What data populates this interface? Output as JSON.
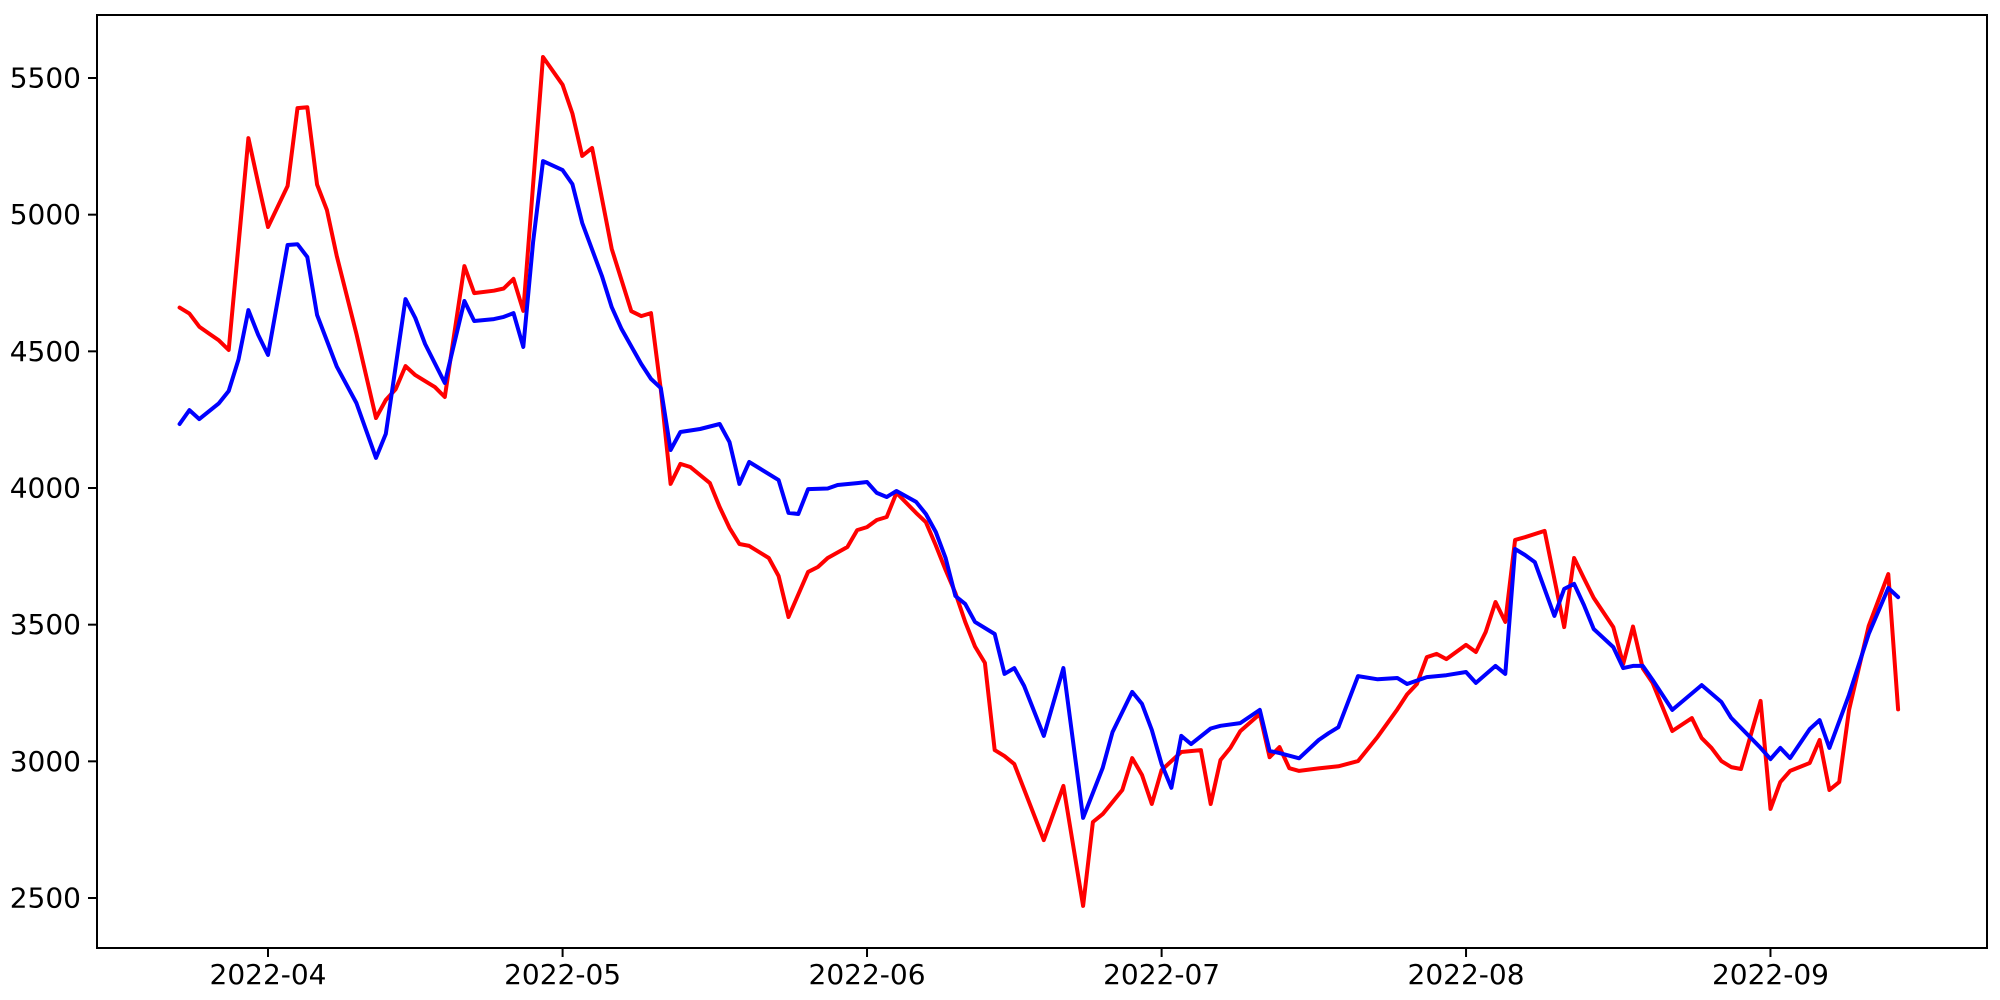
{
  "figure": {
    "background_color": "#ffffff",
    "spine_color": "#000000",
    "tick_label_color": "#000000"
  },
  "chart_data": {
    "type": "line",
    "title": "",
    "xlabel": "",
    "ylabel": "",
    "grid": false,
    "legend": "none",
    "x_axis": {
      "tick_labels": [
        "2022-04",
        "2022-05",
        "2022-06",
        "2022-07",
        "2022-08",
        "2022-09"
      ],
      "tick_dates": [
        "2022-04-01",
        "2022-05-01",
        "2022-06-01",
        "2022-07-01",
        "2022-08-01",
        "2022-09-01"
      ],
      "data_range": [
        "2022-03-23",
        "2022-09-14"
      ]
    },
    "y_axis": {
      "ticks": [
        2500,
        3000,
        3500,
        4000,
        4500,
        5000,
        5500
      ],
      "ylim": [
        2316,
        5732
      ]
    },
    "series": [
      {
        "name": "red-series",
        "color": "#ff0000",
        "points": [
          [
            "2022-03-23",
            4660
          ],
          [
            "2022-03-24",
            4638
          ],
          [
            "2022-03-25",
            4590
          ],
          [
            "2022-03-26",
            4565
          ],
          [
            "2022-03-27",
            4540
          ],
          [
            "2022-03-28",
            4505
          ],
          [
            "2022-03-29",
            4890
          ],
          [
            "2022-03-30",
            5280
          ],
          [
            "2022-03-31",
            5115
          ],
          [
            "2022-04-01",
            4955
          ],
          [
            "2022-04-03",
            5105
          ],
          [
            "2022-04-04",
            5390
          ],
          [
            "2022-04-05",
            5393
          ],
          [
            "2022-04-06",
            5110
          ],
          [
            "2022-04-07",
            5017
          ],
          [
            "2022-04-08",
            4850
          ],
          [
            "2022-04-10",
            4564
          ],
          [
            "2022-04-12",
            4256
          ],
          [
            "2022-04-13",
            4322
          ],
          [
            "2022-04-14",
            4362
          ],
          [
            "2022-04-15",
            4446
          ],
          [
            "2022-04-16",
            4413
          ],
          [
            "2022-04-18",
            4369
          ],
          [
            "2022-04-19",
            4333
          ],
          [
            "2022-04-21",
            4812
          ],
          [
            "2022-04-22",
            4713
          ],
          [
            "2022-04-24",
            4722
          ],
          [
            "2022-04-25",
            4730
          ],
          [
            "2022-04-26",
            4765
          ],
          [
            "2022-04-27",
            4648
          ],
          [
            "2022-04-28",
            5110
          ],
          [
            "2022-04-29",
            5577
          ],
          [
            "2022-05-01",
            5475
          ],
          [
            "2022-05-02",
            5370
          ],
          [
            "2022-05-03",
            5215
          ],
          [
            "2022-05-04",
            5244
          ],
          [
            "2022-05-05",
            5060
          ],
          [
            "2022-05-06",
            4875
          ],
          [
            "2022-05-08",
            4647
          ],
          [
            "2022-05-09",
            4629
          ],
          [
            "2022-05-10",
            4640
          ],
          [
            "2022-05-11",
            4360
          ],
          [
            "2022-05-12",
            4015
          ],
          [
            "2022-05-13",
            4088
          ],
          [
            "2022-05-14",
            4077
          ],
          [
            "2022-05-16",
            4018
          ],
          [
            "2022-05-17",
            3930
          ],
          [
            "2022-05-18",
            3854
          ],
          [
            "2022-05-19",
            3795
          ],
          [
            "2022-05-20",
            3788
          ],
          [
            "2022-05-22",
            3744
          ],
          [
            "2022-05-23",
            3678
          ],
          [
            "2022-05-24",
            3528
          ],
          [
            "2022-05-26",
            3693
          ],
          [
            "2022-05-27",
            3711
          ],
          [
            "2022-05-28",
            3744
          ],
          [
            "2022-05-30",
            3784
          ],
          [
            "2022-05-31",
            3846
          ],
          [
            "2022-06-01",
            3857
          ],
          [
            "2022-06-02",
            3883
          ],
          [
            "2022-06-03",
            3894
          ],
          [
            "2022-06-04",
            3982
          ],
          [
            "2022-06-06",
            3909
          ],
          [
            "2022-06-07",
            3875
          ],
          [
            "2022-06-08",
            3790
          ],
          [
            "2022-06-09",
            3700
          ],
          [
            "2022-06-10",
            3616
          ],
          [
            "2022-06-11",
            3510
          ],
          [
            "2022-06-12",
            3420
          ],
          [
            "2022-06-13",
            3360
          ],
          [
            "2022-06-14",
            3041
          ],
          [
            "2022-06-15",
            3019
          ],
          [
            "2022-06-16",
            2990
          ],
          [
            "2022-06-19",
            2712
          ],
          [
            "2022-06-21",
            2910
          ],
          [
            "2022-06-23",
            2471
          ],
          [
            "2022-06-24",
            2778
          ],
          [
            "2022-06-25",
            2807
          ],
          [
            "2022-06-27",
            2895
          ],
          [
            "2022-06-28",
            3012
          ],
          [
            "2022-06-29",
            2950
          ],
          [
            "2022-06-30",
            2844
          ],
          [
            "2022-07-01",
            2968
          ],
          [
            "2022-07-03",
            3034
          ],
          [
            "2022-07-05",
            3041
          ],
          [
            "2022-07-06",
            2844
          ],
          [
            "2022-07-07",
            3005
          ],
          [
            "2022-07-08",
            3049
          ],
          [
            "2022-07-09",
            3110
          ],
          [
            "2022-07-11",
            3173
          ],
          [
            "2022-07-12",
            3015
          ],
          [
            "2022-07-13",
            3052
          ],
          [
            "2022-07-14",
            2975
          ],
          [
            "2022-07-15",
            2965
          ],
          [
            "2022-07-17",
            2974
          ],
          [
            "2022-07-19",
            2982
          ],
          [
            "2022-07-21",
            3001
          ],
          [
            "2022-07-23",
            3090
          ],
          [
            "2022-07-25",
            3190
          ],
          [
            "2022-07-26",
            3245
          ],
          [
            "2022-07-27",
            3283
          ],
          [
            "2022-07-28",
            3381
          ],
          [
            "2022-07-29",
            3393
          ],
          [
            "2022-07-30",
            3374
          ],
          [
            "2022-08-01",
            3426
          ],
          [
            "2022-08-02",
            3400
          ],
          [
            "2022-08-03",
            3473
          ],
          [
            "2022-08-04",
            3583
          ],
          [
            "2022-08-05",
            3510
          ],
          [
            "2022-08-06",
            3810
          ],
          [
            "2022-08-07",
            3820
          ],
          [
            "2022-08-09",
            3843
          ],
          [
            "2022-08-11",
            3491
          ],
          [
            "2022-08-12",
            3744
          ],
          [
            "2022-08-13",
            3670
          ],
          [
            "2022-08-14",
            3598
          ],
          [
            "2022-08-16",
            3491
          ],
          [
            "2022-08-17",
            3356
          ],
          [
            "2022-08-18",
            3493
          ],
          [
            "2022-08-19",
            3340
          ],
          [
            "2022-08-20",
            3287
          ],
          [
            "2022-08-22",
            3111
          ],
          [
            "2022-08-24",
            3158
          ],
          [
            "2022-08-25",
            3085
          ],
          [
            "2022-08-26",
            3049
          ],
          [
            "2022-08-27",
            3001
          ],
          [
            "2022-08-28",
            2979
          ],
          [
            "2022-08-29",
            2972
          ],
          [
            "2022-08-31",
            3221
          ],
          [
            "2022-09-01",
            2826
          ],
          [
            "2022-09-02",
            2924
          ],
          [
            "2022-09-03",
            2965
          ],
          [
            "2022-09-05",
            2994
          ],
          [
            "2022-09-06",
            3078
          ],
          [
            "2022-09-07",
            2895
          ],
          [
            "2022-09-08",
            2924
          ],
          [
            "2022-09-09",
            3187
          ],
          [
            "2022-09-11",
            3495
          ],
          [
            "2022-09-13",
            3685
          ],
          [
            "2022-09-14",
            3190
          ]
        ]
      },
      {
        "name": "blue-series",
        "color": "#0000ff",
        "points": [
          [
            "2022-03-23",
            4234
          ],
          [
            "2022-03-24",
            4285
          ],
          [
            "2022-03-25",
            4252
          ],
          [
            "2022-03-27",
            4310
          ],
          [
            "2022-03-28",
            4355
          ],
          [
            "2022-03-29",
            4470
          ],
          [
            "2022-03-30",
            4651
          ],
          [
            "2022-03-31",
            4560
          ],
          [
            "2022-04-01",
            4487
          ],
          [
            "2022-04-03",
            4889
          ],
          [
            "2022-04-04",
            4892
          ],
          [
            "2022-04-05",
            4845
          ],
          [
            "2022-04-06",
            4633
          ],
          [
            "2022-04-08",
            4445
          ],
          [
            "2022-04-10",
            4311
          ],
          [
            "2022-04-12",
            4110
          ],
          [
            "2022-04-13",
            4198
          ],
          [
            "2022-04-15",
            4691
          ],
          [
            "2022-04-16",
            4622
          ],
          [
            "2022-04-17",
            4527
          ],
          [
            "2022-04-19",
            4384
          ],
          [
            "2022-04-21",
            4684
          ],
          [
            "2022-04-22",
            4611
          ],
          [
            "2022-04-24",
            4618
          ],
          [
            "2022-04-25",
            4626
          ],
          [
            "2022-04-26",
            4640
          ],
          [
            "2022-04-27",
            4516
          ],
          [
            "2022-04-28",
            4900
          ],
          [
            "2022-04-29",
            5196
          ],
          [
            "2022-05-01",
            5163
          ],
          [
            "2022-05-02",
            5112
          ],
          [
            "2022-05-03",
            4970
          ],
          [
            "2022-05-05",
            4776
          ],
          [
            "2022-05-06",
            4662
          ],
          [
            "2022-05-07",
            4582
          ],
          [
            "2022-05-09",
            4454
          ],
          [
            "2022-05-10",
            4399
          ],
          [
            "2022-05-11",
            4366
          ],
          [
            "2022-05-12",
            4139
          ],
          [
            "2022-05-13",
            4205
          ],
          [
            "2022-05-15",
            4216
          ],
          [
            "2022-05-17",
            4234
          ],
          [
            "2022-05-18",
            4168
          ],
          [
            "2022-05-19",
            4015
          ],
          [
            "2022-05-20",
            4095
          ],
          [
            "2022-05-21",
            4073
          ],
          [
            "2022-05-23",
            4029
          ],
          [
            "2022-05-24",
            3909
          ],
          [
            "2022-05-25",
            3905
          ],
          [
            "2022-05-26",
            3996
          ],
          [
            "2022-05-28",
            3998
          ],
          [
            "2022-05-29",
            4011
          ],
          [
            "2022-05-31",
            4018
          ],
          [
            "2022-06-01",
            4022
          ],
          [
            "2022-06-02",
            3982
          ],
          [
            "2022-06-03",
            3967
          ],
          [
            "2022-06-04",
            3989
          ],
          [
            "2022-06-06",
            3949
          ],
          [
            "2022-06-07",
            3905
          ],
          [
            "2022-06-08",
            3839
          ],
          [
            "2022-06-09",
            3744
          ],
          [
            "2022-06-10",
            3605
          ],
          [
            "2022-06-11",
            3576
          ],
          [
            "2022-06-12",
            3510
          ],
          [
            "2022-06-14",
            3466
          ],
          [
            "2022-06-15",
            3320
          ],
          [
            "2022-06-16",
            3341
          ],
          [
            "2022-06-17",
            3276
          ],
          [
            "2022-06-19",
            3093
          ],
          [
            "2022-06-21",
            3341
          ],
          [
            "2022-06-23",
            2793
          ],
          [
            "2022-06-25",
            2976
          ],
          [
            "2022-06-26",
            3107
          ],
          [
            "2022-06-28",
            3254
          ],
          [
            "2022-06-29",
            3210
          ],
          [
            "2022-06-30",
            3115
          ],
          [
            "2022-07-01",
            2990
          ],
          [
            "2022-07-02",
            2903
          ],
          [
            "2022-07-03",
            3093
          ],
          [
            "2022-07-04",
            3063
          ],
          [
            "2022-07-06",
            3120
          ],
          [
            "2022-07-07",
            3130
          ],
          [
            "2022-07-09",
            3140
          ],
          [
            "2022-07-11",
            3188
          ],
          [
            "2022-07-12",
            3038
          ],
          [
            "2022-07-13",
            3030
          ],
          [
            "2022-07-15",
            3011
          ],
          [
            "2022-07-17",
            3078
          ],
          [
            "2022-07-18",
            3103
          ],
          [
            "2022-07-19",
            3125
          ],
          [
            "2022-07-21",
            3312
          ],
          [
            "2022-07-23",
            3300
          ],
          [
            "2022-07-25",
            3305
          ],
          [
            "2022-07-26",
            3283
          ],
          [
            "2022-07-28",
            3308
          ],
          [
            "2022-07-30",
            3315
          ],
          [
            "2022-08-01",
            3327
          ],
          [
            "2022-08-02",
            3287
          ],
          [
            "2022-08-04",
            3349
          ],
          [
            "2022-08-05",
            3320
          ],
          [
            "2022-08-06",
            3777
          ],
          [
            "2022-08-07",
            3755
          ],
          [
            "2022-08-08",
            3729
          ],
          [
            "2022-08-10",
            3532
          ],
          [
            "2022-08-11",
            3631
          ],
          [
            "2022-08-12",
            3649
          ],
          [
            "2022-08-13",
            3572
          ],
          [
            "2022-08-14",
            3484
          ],
          [
            "2022-08-16",
            3418
          ],
          [
            "2022-08-17",
            3341
          ],
          [
            "2022-08-18",
            3349
          ],
          [
            "2022-08-19",
            3349
          ],
          [
            "2022-08-20",
            3298
          ],
          [
            "2022-08-22",
            3188
          ],
          [
            "2022-08-25",
            3279
          ],
          [
            "2022-08-27",
            3217
          ],
          [
            "2022-08-28",
            3159
          ],
          [
            "2022-08-31",
            3049
          ],
          [
            "2022-09-01",
            3008
          ],
          [
            "2022-09-02",
            3049
          ],
          [
            "2022-09-03",
            3012
          ],
          [
            "2022-09-05",
            3118
          ],
          [
            "2022-09-06",
            3151
          ],
          [
            "2022-09-07",
            3049
          ],
          [
            "2022-09-09",
            3243
          ],
          [
            "2022-09-11",
            3466
          ],
          [
            "2022-09-13",
            3634
          ],
          [
            "2022-09-14",
            3601
          ]
        ]
      }
    ]
  }
}
